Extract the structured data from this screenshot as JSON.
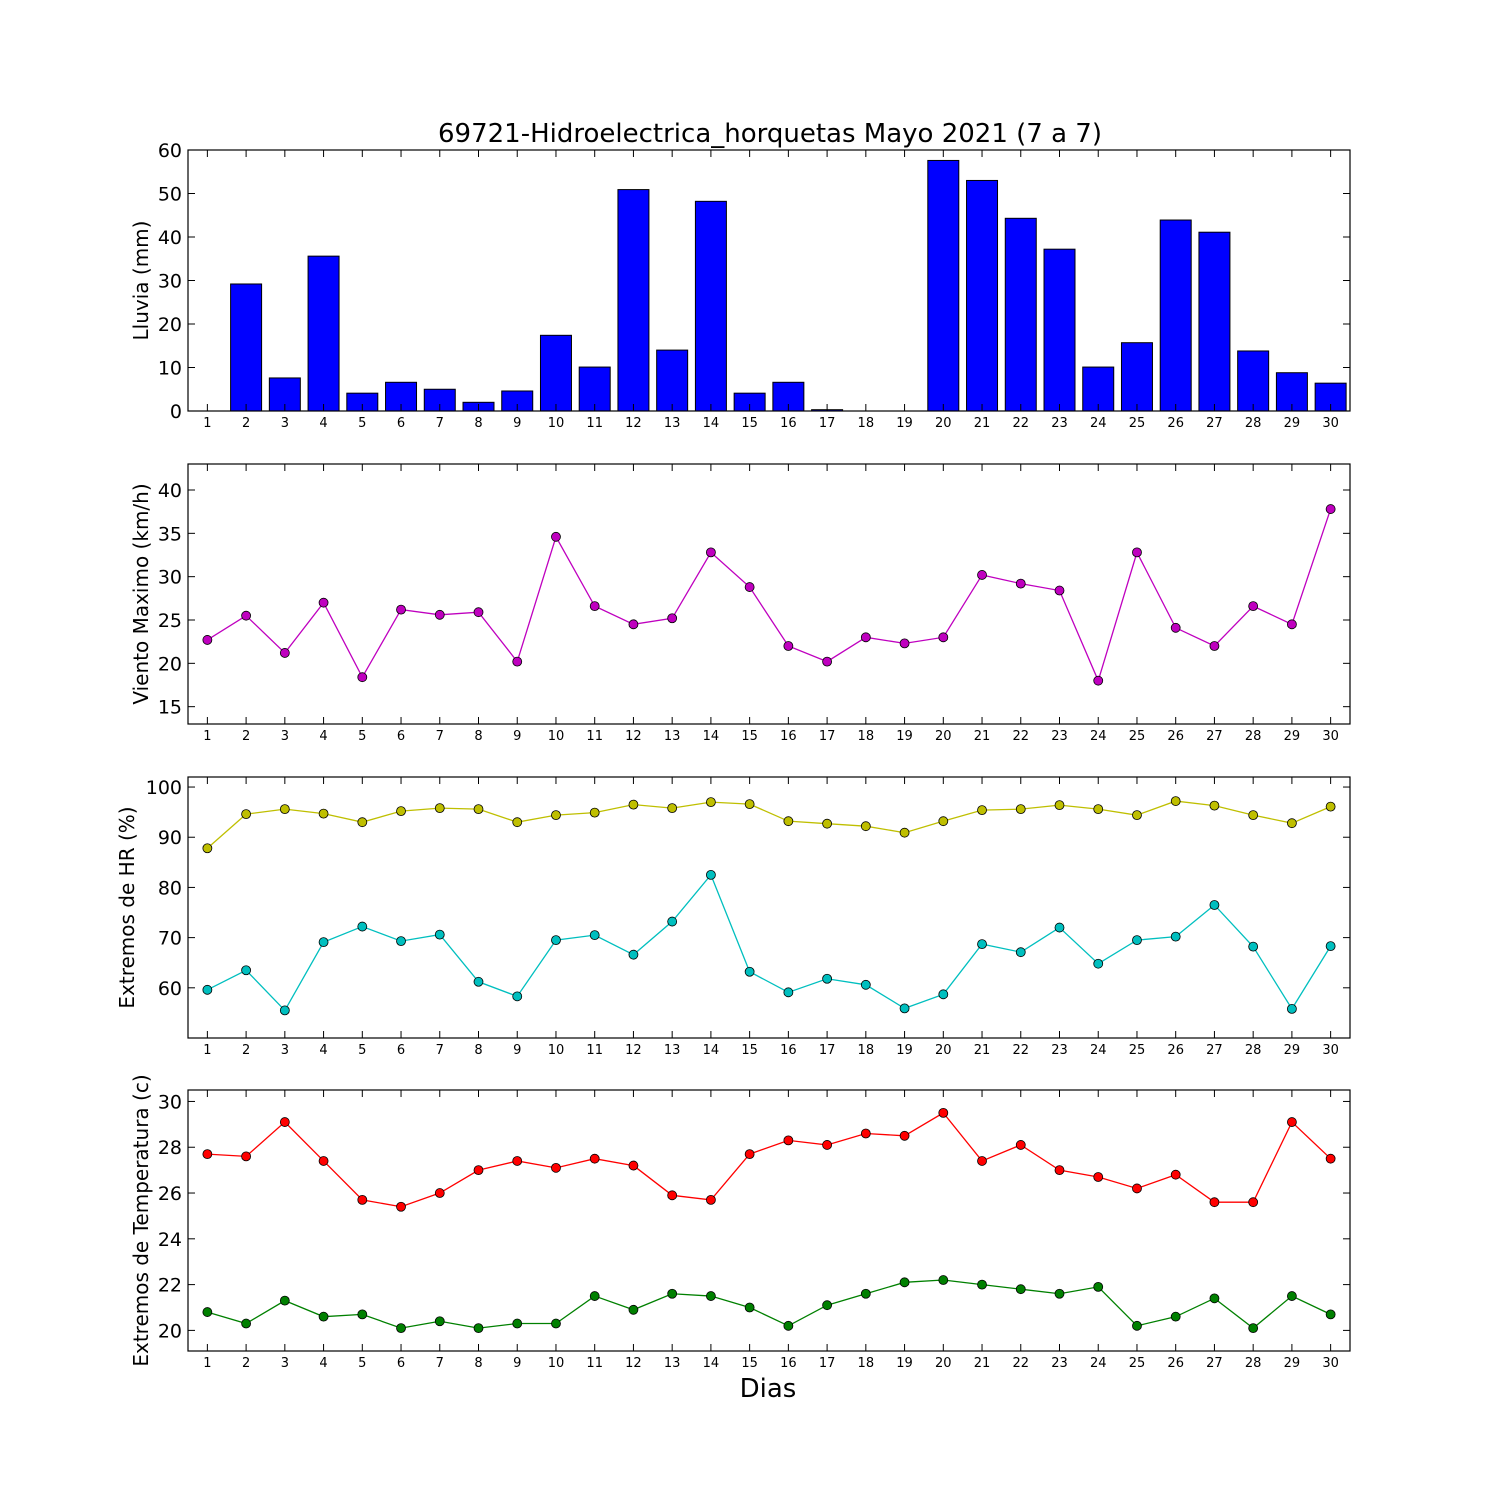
{
  "title": "69721-Hidroelectrica_horquetas Mayo 2021  (7 a 7)",
  "xlabel": "Dias",
  "chart_data": [
    {
      "type": "bar",
      "ylabel": "Lluvia (mm)",
      "ylim": [
        0,
        60
      ],
      "yticks": [
        0,
        10,
        20,
        30,
        40,
        50,
        60
      ],
      "categories": [
        "1",
        "2",
        "3",
        "4",
        "5",
        "6",
        "7",
        "8",
        "9",
        "10",
        "11",
        "12",
        "13",
        "14",
        "15",
        "16",
        "17",
        "18",
        "19",
        "20",
        "21",
        "22",
        "23",
        "24",
        "25",
        "26",
        "27",
        "28",
        "29",
        "30"
      ],
      "series": [
        {
          "color": "#0000ff",
          "values": [
            0,
            29.2,
            7.6,
            35.6,
            4.1,
            6.6,
            5.0,
            2.0,
            4.6,
            17.4,
            10.1,
            50.9,
            14.0,
            48.2,
            4.1,
            6.6,
            0.3,
            0,
            0,
            57.6,
            53.0,
            44.3,
            37.2,
            10.1,
            15.7,
            43.9,
            41.1,
            13.8,
            8.8,
            6.4
          ]
        }
      ]
    },
    {
      "type": "line",
      "ylabel": "Viento Maximo (km/h)",
      "ylim": [
        13,
        43
      ],
      "yticks": [
        15,
        20,
        25,
        30,
        35,
        40
      ],
      "categories": [
        "1",
        "2",
        "3",
        "4",
        "5",
        "6",
        "7",
        "8",
        "9",
        "10",
        "11",
        "12",
        "13",
        "14",
        "15",
        "16",
        "17",
        "18",
        "19",
        "20",
        "21",
        "22",
        "23",
        "24",
        "25",
        "26",
        "27",
        "28",
        "29",
        "30"
      ],
      "series": [
        {
          "color": "#bf00bf",
          "values": [
            22.7,
            25.5,
            21.2,
            27.0,
            18.4,
            26.2,
            25.6,
            25.9,
            20.2,
            34.6,
            26.6,
            24.5,
            25.2,
            32.8,
            28.8,
            22.0,
            20.2,
            23.0,
            22.3,
            23.0,
            30.2,
            29.2,
            28.4,
            18.0,
            32.8,
            24.1,
            22.0,
            26.6,
            24.5,
            37.8
          ]
        }
      ]
    },
    {
      "type": "line",
      "ylabel": "Extremos de HR (%)",
      "ylim": [
        50,
        102
      ],
      "yticks": [
        60,
        70,
        80,
        90,
        100
      ],
      "categories": [
        "1",
        "2",
        "3",
        "4",
        "5",
        "6",
        "7",
        "8",
        "9",
        "10",
        "11",
        "12",
        "13",
        "14",
        "15",
        "16",
        "17",
        "18",
        "19",
        "20",
        "21",
        "22",
        "23",
        "24",
        "25",
        "26",
        "27",
        "28",
        "29",
        "30"
      ],
      "series": [
        {
          "color": "#bfbf00",
          "values": [
            87.8,
            94.6,
            95.6,
            94.7,
            93.0,
            95.2,
            95.8,
            95.6,
            93.0,
            94.4,
            94.9,
            96.5,
            95.8,
            97.0,
            96.6,
            93.2,
            92.7,
            92.2,
            90.9,
            93.2,
            95.4,
            95.6,
            96.4,
            95.6,
            94.4,
            97.2,
            96.3,
            94.4,
            92.8,
            96.1
          ]
        },
        {
          "color": "#00bfbf",
          "values": [
            59.6,
            63.5,
            55.5,
            69.1,
            72.2,
            69.3,
            70.6,
            61.2,
            58.3,
            69.5,
            70.5,
            66.6,
            73.2,
            82.5,
            63.2,
            59.1,
            61.8,
            60.6,
            55.9,
            58.7,
            68.7,
            67.1,
            72.0,
            64.8,
            69.5,
            70.2,
            76.5,
            68.2,
            55.8,
            68.3
          ]
        }
      ]
    },
    {
      "type": "line",
      "ylabel": "Extremos de Temperatura (c)",
      "ylim": [
        19.1,
        30.5
      ],
      "yticks": [
        20,
        22,
        24,
        26,
        28,
        30
      ],
      "categories": [
        "1",
        "2",
        "3",
        "4",
        "5",
        "6",
        "7",
        "8",
        "9",
        "10",
        "11",
        "12",
        "13",
        "14",
        "15",
        "16",
        "17",
        "18",
        "19",
        "20",
        "21",
        "22",
        "23",
        "24",
        "25",
        "26",
        "27",
        "28",
        "29",
        "30"
      ],
      "series": [
        {
          "color": "#ff0000",
          "values": [
            27.7,
            27.6,
            29.1,
            27.4,
            25.7,
            25.4,
            26.0,
            27.0,
            27.4,
            27.1,
            27.5,
            27.2,
            25.9,
            25.7,
            27.7,
            28.3,
            28.1,
            28.6,
            28.5,
            29.5,
            27.4,
            28.1,
            27.0,
            26.7,
            26.2,
            26.8,
            25.6,
            25.6,
            29.1,
            27.5
          ]
        },
        {
          "color": "#008000",
          "values": [
            20.8,
            20.3,
            21.3,
            20.6,
            20.7,
            20.1,
            20.4,
            20.1,
            20.3,
            20.3,
            21.5,
            20.9,
            21.6,
            21.5,
            21.0,
            20.2,
            21.1,
            21.6,
            22.1,
            22.2,
            22.0,
            21.8,
            21.6,
            21.9,
            20.2,
            20.6,
            21.4,
            20.1,
            21.5,
            20.7
          ]
        }
      ]
    }
  ]
}
